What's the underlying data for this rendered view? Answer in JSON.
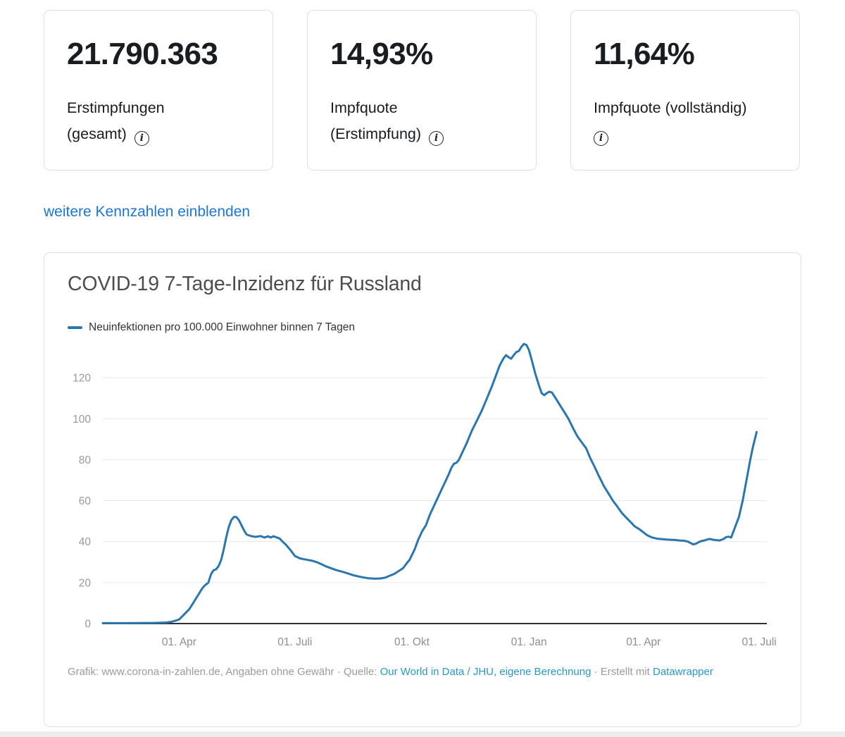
{
  "stat_cards": [
    {
      "value": "21.790.363",
      "label_lines": [
        "Erstimpfungen",
        "(gesamt)"
      ]
    },
    {
      "value": "14,93%",
      "label_lines": [
        "Impfquote",
        "(Erstimpfung)"
      ]
    },
    {
      "value": "11,64%",
      "label_lines": [
        "Impfquote (vollständig)",
        ""
      ]
    }
  ],
  "show_more_link": "weitere Kennzahlen einblenden",
  "chart": {
    "title": "COVID-19 7-Tage-Inzidenz für Russland",
    "legend_label": "Neuinfektionen pro 100.000 Einwohner binnen 7 Tagen",
    "footer": {
      "prefix": "Grafik: www.corona-in-zahlen.de, Angaben ohne Gewähr · Quelle: ",
      "source_link": "Our World in Data / JHU, eigene Berechnung",
      "middle": " · Erstellt mit ",
      "tool_link": "Datawrapper"
    }
  },
  "colors": {
    "line": "#2a76ad",
    "grid": "#e7e7e7",
    "axis": "#303030",
    "y_label": "#999999",
    "x_label": "#8e8e8e",
    "top_link": "#1d76d2",
    "footer_link": "#2d96c8",
    "title_text": "#4d4d4d",
    "card_border": "#dfe1e4"
  },
  "chart_data": {
    "type": "line",
    "title": "COVID-19 7-Tage-Inzidenz für Russland",
    "series_name": "Neuinfektionen pro 100.000 Einwohner binnen 7 Tagen",
    "grid": true,
    "legend_position": "top-left",
    "x_unit": "days since 2020-02-01",
    "x_domain": [
      0,
      522
    ],
    "ylim": [
      0,
      137
    ],
    "y_ticks": [
      0,
      20,
      40,
      60,
      80,
      100,
      120
    ],
    "x_ticks": [
      {
        "label": "01. Apr",
        "day": 60
      },
      {
        "label": "01. Juli",
        "day": 151
      },
      {
        "label": "01. Okt",
        "day": 243
      },
      {
        "label": "01. Jan",
        "day": 335
      },
      {
        "label": "01. Apr",
        "day": 425
      },
      {
        "label": "01. Juli",
        "day": 516
      }
    ],
    "points": [
      [
        0,
        0.2
      ],
      [
        15,
        0.2
      ],
      [
        30,
        0.25
      ],
      [
        40,
        0.3
      ],
      [
        46,
        0.4
      ],
      [
        50,
        0.5
      ],
      [
        54,
        0.9
      ],
      [
        57,
        1.4
      ],
      [
        60,
        2
      ],
      [
        64,
        4.5
      ],
      [
        68,
        7
      ],
      [
        71,
        10
      ],
      [
        75,
        14
      ],
      [
        78,
        17
      ],
      [
        80,
        18.5
      ],
      [
        83,
        20
      ],
      [
        85,
        24
      ],
      [
        87,
        26
      ],
      [
        89,
        26.5
      ],
      [
        91,
        28
      ],
      [
        93,
        31
      ],
      [
        95,
        36
      ],
      [
        97,
        42
      ],
      [
        99,
        47
      ],
      [
        101,
        50.5
      ],
      [
        103,
        52
      ],
      [
        105,
        52
      ],
      [
        107,
        50.5
      ],
      [
        109,
        48
      ],
      [
        111,
        45.5
      ],
      [
        113,
        43.5
      ],
      [
        116,
        42.8
      ],
      [
        120,
        42.3
      ],
      [
        124,
        42.7
      ],
      [
        127,
        42
      ],
      [
        130,
        42.6
      ],
      [
        132,
        42
      ],
      [
        134,
        42.6
      ],
      [
        136,
        42.2
      ],
      [
        139,
        41.5
      ],
      [
        141,
        40.2
      ],
      [
        144,
        38.5
      ],
      [
        148,
        35.5
      ],
      [
        151,
        33
      ],
      [
        155,
        31.8
      ],
      [
        160,
        31.2
      ],
      [
        165,
        30.6
      ],
      [
        169,
        29.8
      ],
      [
        176,
        27.8
      ],
      [
        183,
        26.2
      ],
      [
        190,
        25
      ],
      [
        197,
        23.6
      ],
      [
        204,
        22.6
      ],
      [
        209,
        22.1
      ],
      [
        214,
        21.9
      ],
      [
        218,
        22
      ],
      [
        222,
        22.4
      ],
      [
        225,
        23.2
      ],
      [
        229,
        24.2
      ],
      [
        232,
        25.4
      ],
      [
        236,
        27
      ],
      [
        239,
        29.5
      ],
      [
        241,
        31
      ],
      [
        243,
        33.5
      ],
      [
        245,
        36
      ],
      [
        248,
        41
      ],
      [
        251,
        45
      ],
      [
        254,
        48
      ],
      [
        257,
        53
      ],
      [
        260,
        57
      ],
      [
        263,
        61
      ],
      [
        266,
        65
      ],
      [
        269,
        69
      ],
      [
        272,
        73
      ],
      [
        274,
        76
      ],
      [
        276,
        78
      ],
      [
        278,
        78.5
      ],
      [
        280,
        80
      ],
      [
        283,
        84
      ],
      [
        286,
        88
      ],
      [
        290,
        94
      ],
      [
        294,
        99
      ],
      [
        298,
        104
      ],
      [
        302,
        110
      ],
      [
        306,
        116
      ],
      [
        309,
        121
      ],
      [
        312,
        126
      ],
      [
        315,
        129.5
      ],
      [
        317,
        131
      ],
      [
        319,
        130
      ],
      [
        321,
        129.3
      ],
      [
        323,
        131
      ],
      [
        325,
        132.5
      ],
      [
        327,
        133
      ],
      [
        329,
        135
      ],
      [
        331,
        136.5
      ],
      [
        333,
        136
      ],
      [
        335,
        133.5
      ],
      [
        337,
        129
      ],
      [
        340,
        122
      ],
      [
        343,
        116
      ],
      [
        345,
        112.5
      ],
      [
        347,
        111.5
      ],
      [
        349,
        112.5
      ],
      [
        351,
        113.2
      ],
      [
        353,
        112.8
      ],
      [
        356,
        110
      ],
      [
        359,
        107
      ],
      [
        362,
        104
      ],
      [
        366,
        100
      ],
      [
        370,
        95
      ],
      [
        373,
        91.5
      ],
      [
        377,
        88
      ],
      [
        380,
        85.5
      ],
      [
        383,
        81
      ],
      [
        387,
        76
      ],
      [
        390,
        72
      ],
      [
        394,
        67
      ],
      [
        398,
        63
      ],
      [
        401,
        60
      ],
      [
        404,
        57.5
      ],
      [
        408,
        54
      ],
      [
        411,
        52
      ],
      [
        415,
        49.5
      ],
      [
        418,
        47.5
      ],
      [
        422,
        46
      ],
      [
        425,
        44.5
      ],
      [
        427,
        43.5
      ],
      [
        429,
        42.8
      ],
      [
        432,
        42
      ],
      [
        436,
        41.4
      ],
      [
        440,
        41.2
      ],
      [
        443,
        41
      ],
      [
        447,
        40.9
      ],
      [
        450,
        40.8
      ],
      [
        453,
        40.6
      ],
      [
        457,
        40.4
      ],
      [
        460,
        40
      ],
      [
        462,
        39.3
      ],
      [
        464,
        38.7
      ],
      [
        466,
        38.9
      ],
      [
        468,
        39.6
      ],
      [
        470,
        40.2
      ],
      [
        473,
        40.6
      ],
      [
        475,
        41
      ],
      [
        477,
        41.3
      ],
      [
        480,
        40.9
      ],
      [
        483,
        40.7
      ],
      [
        485,
        40.6
      ],
      [
        488,
        41.3
      ],
      [
        490,
        42.2
      ],
      [
        492,
        42.4
      ],
      [
        494,
        42
      ],
      [
        497,
        47
      ],
      [
        500,
        52
      ],
      [
        503,
        60
      ],
      [
        506,
        70
      ],
      [
        509,
        80
      ],
      [
        511,
        86
      ],
      [
        514,
        93.5
      ]
    ]
  }
}
